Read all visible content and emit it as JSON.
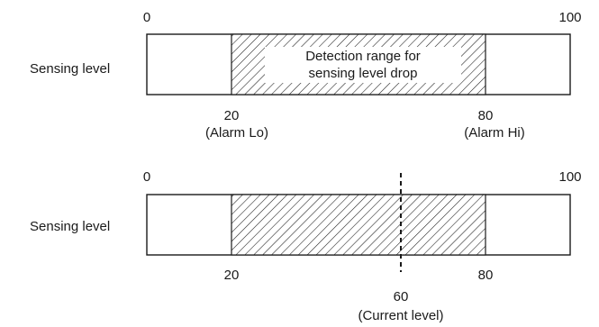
{
  "diagrams": [
    {
      "row_label": "Sensing level",
      "scale_min": "0",
      "scale_max": "100",
      "range_low": 20,
      "range_high": 80,
      "range_text_line1": "Detection range for",
      "range_text_line2": "sensing level drop",
      "low_value_label": "20",
      "low_caption": "(Alarm Lo)",
      "high_value_label": "80",
      "high_caption": "(Alarm Hi)"
    },
    {
      "row_label": "Sensing level",
      "scale_min": "0",
      "scale_max": "100",
      "range_low": 20,
      "range_high": 80,
      "current": 60,
      "low_value_label": "20",
      "high_value_label": "80",
      "current_value_label": "60",
      "current_caption": "(Current level)"
    }
  ]
}
